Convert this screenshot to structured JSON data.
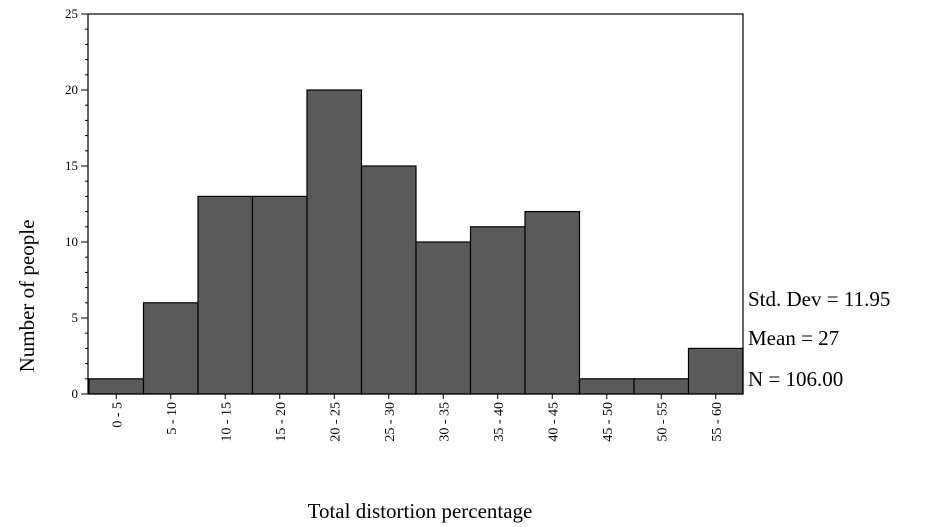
{
  "chart_data": {
    "type": "bar",
    "categories": [
      "0 - 5",
      "5 - 10",
      "10 - 15",
      "15 - 20",
      "20 - 25",
      "25 - 30",
      "30 - 35",
      "35 - 40",
      "40 - 45",
      "45 - 50",
      "50 - 55",
      "55 - 60"
    ],
    "values": [
      1,
      6,
      13,
      13,
      20,
      15,
      10,
      11,
      12,
      1,
      1,
      3
    ],
    "xlabel": "Total distortion percentage",
    "ylabel": "Number of people",
    "ylim": [
      0,
      25
    ],
    "yticks": [
      0,
      5,
      10,
      15,
      20,
      25
    ],
    "bar_color": "#5a5a5a",
    "grid": false,
    "stats": {
      "std_dev": "Std. Dev = 11.95",
      "mean": "Mean = 27",
      "n": "N = 106.00"
    }
  }
}
